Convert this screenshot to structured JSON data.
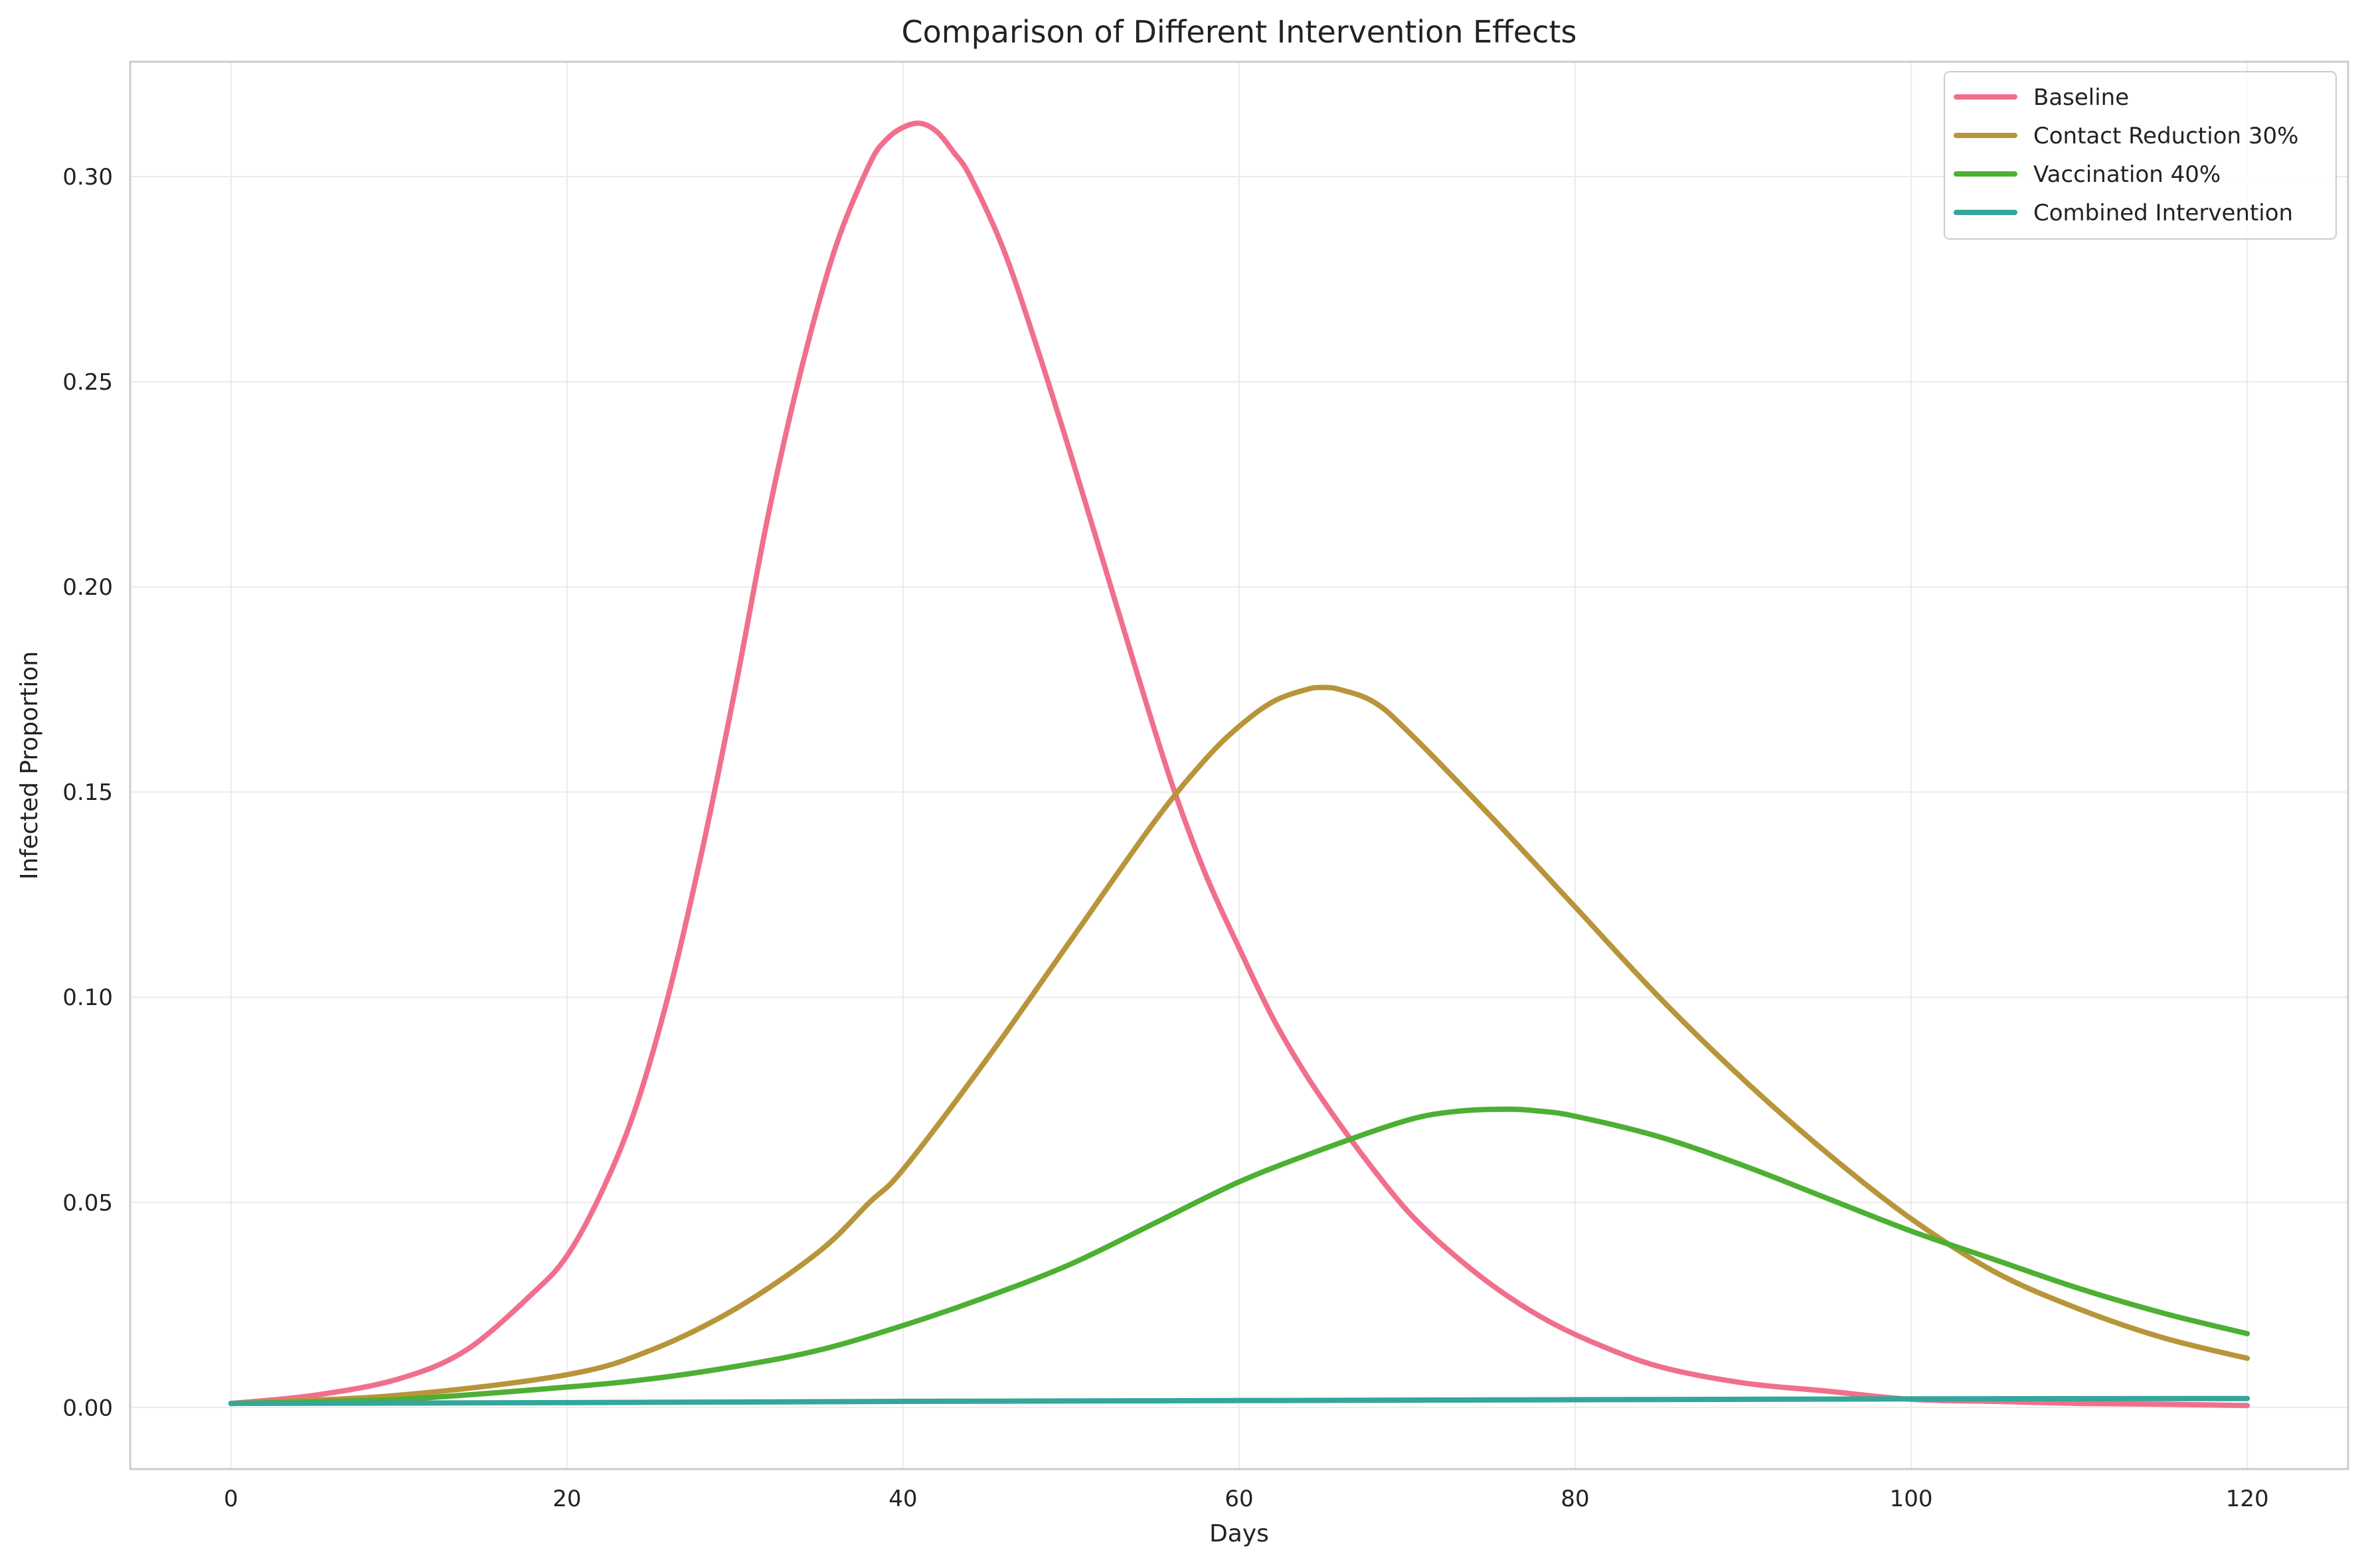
{
  "chart_data": {
    "type": "line",
    "title": "Comparison of Different Intervention Effects",
    "xlabel": "Days",
    "ylabel": "Infected Proportion",
    "xlim": [
      -6,
      126
    ],
    "ylim": [
      -0.015,
      0.328
    ],
    "x_ticks": [
      0,
      20,
      40,
      60,
      80,
      100,
      120
    ],
    "y_ticks": [
      0.0,
      0.05,
      0.1,
      0.15,
      0.2,
      0.25,
      0.3
    ],
    "x_tick_labels": [
      "0",
      "20",
      "40",
      "60",
      "80",
      "100",
      "120"
    ],
    "y_tick_labels": [
      "0.00",
      "0.05",
      "0.10",
      "0.15",
      "0.20",
      "0.25",
      "0.30"
    ],
    "grid": true,
    "legend_position": "top-right",
    "series": [
      {
        "name": "Baseline",
        "color": "#f0708c",
        "x": [
          0,
          5,
          10,
          14,
          18,
          20,
          22,
          24,
          26,
          28,
          30,
          32,
          34,
          36,
          38,
          39,
          40,
          41,
          42,
          43,
          44,
          46,
          48,
          50,
          52,
          54,
          56,
          58,
          60,
          62,
          64,
          66,
          68,
          70,
          72,
          75,
          78,
          81,
          85,
          90,
          95,
          100,
          105,
          110,
          115,
          120
        ],
        "y": [
          0.001,
          0.003,
          0.007,
          0.014,
          0.028,
          0.037,
          0.052,
          0.072,
          0.1,
          0.135,
          0.175,
          0.218,
          0.254,
          0.283,
          0.303,
          0.309,
          0.312,
          0.313,
          0.311,
          0.306,
          0.3,
          0.282,
          0.258,
          0.232,
          0.205,
          0.178,
          0.152,
          0.13,
          0.112,
          0.095,
          0.081,
          0.069,
          0.058,
          0.048,
          0.04,
          0.03,
          0.022,
          0.016,
          0.01,
          0.006,
          0.004,
          0.002,
          0.0015,
          0.001,
          0.0008,
          0.0005
        ]
      },
      {
        "name": "Contact Reduction 30%",
        "color": "#b8953a",
        "x": [
          0,
          10,
          20,
          25,
          30,
          35,
          38,
          40,
          45,
          50,
          55,
          58,
          60,
          62,
          64,
          65,
          66,
          68,
          70,
          75,
          80,
          85,
          90,
          95,
          100,
          105,
          110,
          115,
          120
        ],
        "y": [
          0.001,
          0.003,
          0.008,
          0.014,
          0.024,
          0.038,
          0.05,
          0.058,
          0.085,
          0.114,
          0.143,
          0.158,
          0.166,
          0.172,
          0.175,
          0.1755,
          0.175,
          0.172,
          0.165,
          0.144,
          0.122,
          0.1,
          0.08,
          0.062,
          0.046,
          0.033,
          0.024,
          0.017,
          0.012
        ]
      },
      {
        "name": "Vaccination 40%",
        "color": "#4daf33",
        "x": [
          0,
          10,
          20,
          25,
          30,
          35,
          40,
          45,
          50,
          55,
          60,
          65,
          70,
          73,
          76,
          78,
          80,
          85,
          90,
          95,
          100,
          105,
          110,
          115,
          120
        ],
        "y": [
          0.001,
          0.002,
          0.005,
          0.007,
          0.01,
          0.014,
          0.02,
          0.027,
          0.035,
          0.045,
          0.055,
          0.063,
          0.07,
          0.0722,
          0.0727,
          0.0722,
          0.071,
          0.066,
          0.059,
          0.051,
          0.043,
          0.036,
          0.029,
          0.023,
          0.018
        ]
      },
      {
        "name": "Combined Intervention",
        "color": "#34a69a",
        "x": [
          0,
          20,
          40,
          60,
          80,
          100,
          120
        ],
        "y": [
          0.001,
          0.0012,
          0.0015,
          0.0017,
          0.0019,
          0.0021,
          0.0022
        ]
      }
    ]
  }
}
